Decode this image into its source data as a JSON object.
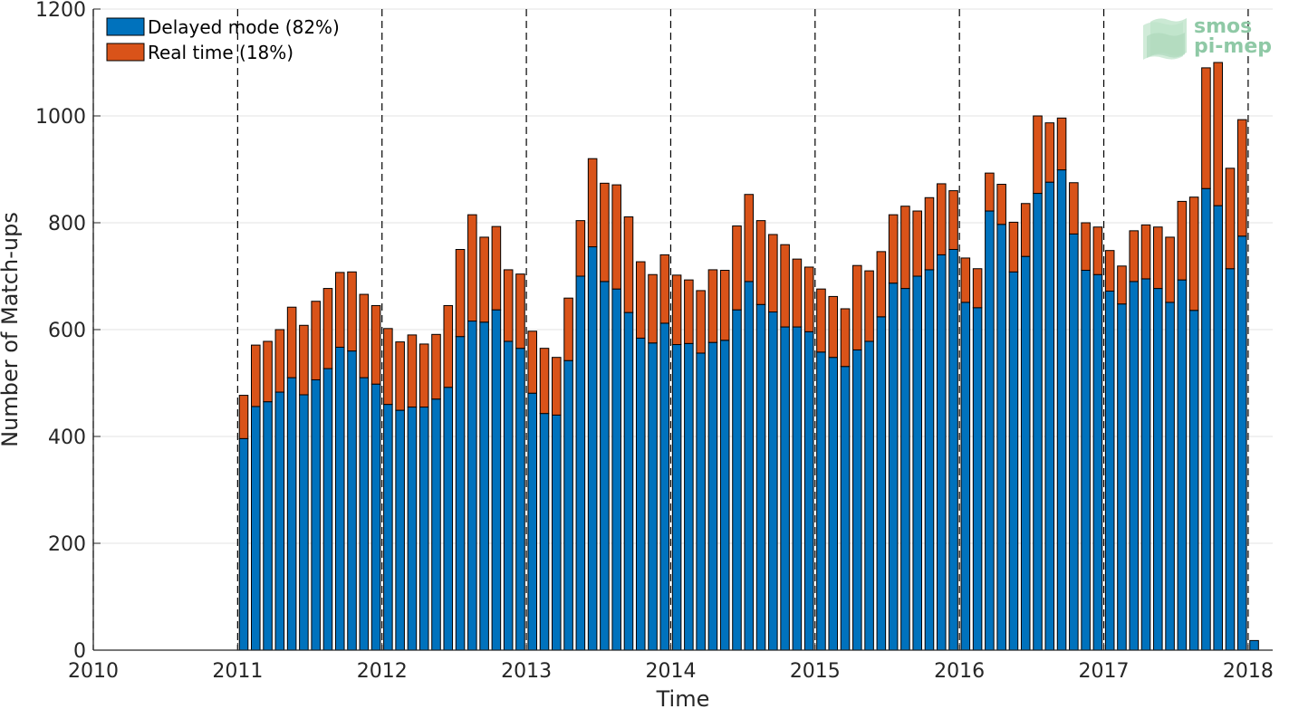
{
  "chart_data": {
    "type": "bar",
    "stacked": true,
    "xlabel": "Time",
    "ylabel": "Number of Match-ups",
    "xlim": [
      2010,
      2018.17
    ],
    "ylim": [
      0,
      1200
    ],
    "xticks": [
      2010,
      2011,
      2012,
      2013,
      2014,
      2015,
      2016,
      2017,
      2018
    ],
    "xtick_labels": [
      "2010",
      "2011",
      "2012",
      "2013",
      "2014",
      "2015",
      "2016",
      "2017",
      "2018"
    ],
    "yticks": [
      0,
      200,
      400,
      600,
      800,
      1000,
      1200
    ],
    "ytick_labels": [
      "0",
      "200",
      "400",
      "600",
      "800",
      "1000",
      "1200"
    ],
    "grid": true,
    "year_separators": "dashed vertical lines at each year",
    "legend_position": "top-left",
    "start": [
      2011,
      1
    ],
    "series": [
      {
        "name": "Delayed mode (82%)",
        "color": "#0072bd",
        "values": [
          396,
          456,
          465,
          483,
          510,
          478,
          506,
          527,
          567,
          560,
          510,
          498,
          460,
          449,
          455,
          455,
          470,
          492,
          587,
          616,
          614,
          637,
          578,
          565,
          481,
          443,
          440,
          542,
          700,
          755,
          690,
          676,
          632,
          584,
          575,
          612,
          572,
          574,
          556,
          576,
          580,
          637,
          690,
          647,
          633,
          605,
          605,
          596,
          558,
          548,
          531,
          562,
          578,
          624,
          687,
          677,
          700,
          712,
          740,
          750,
          651,
          641,
          822,
          797,
          708,
          737,
          855,
          876,
          899,
          779,
          711,
          703,
          672,
          648,
          690,
          695,
          677,
          651,
          693,
          636,
          864,
          832,
          714,
          775,
          18
        ]
      },
      {
        "name": "Real time (18%)",
        "color": "#d95319",
        "values": [
          81,
          115,
          113,
          117,
          132,
          130,
          147,
          150,
          140,
          148,
          156,
          147,
          142,
          128,
          135,
          118,
          121,
          153,
          163,
          199,
          159,
          156,
          134,
          139,
          116,
          122,
          108,
          117,
          104,
          165,
          184,
          195,
          179,
          143,
          128,
          128,
          130,
          119,
          117,
          136,
          131,
          157,
          163,
          157,
          145,
          154,
          127,
          121,
          118,
          114,
          108,
          158,
          132,
          122,
          128,
          154,
          122,
          135,
          133,
          110,
          83,
          73,
          71,
          75,
          93,
          99,
          145,
          111,
          97,
          96,
          89,
          89,
          76,
          71,
          95,
          101,
          115,
          122,
          147,
          212,
          226,
          268,
          188,
          218,
          0
        ]
      }
    ]
  },
  "logo": {
    "line1": "smos",
    "line2": "pi-mep"
  }
}
